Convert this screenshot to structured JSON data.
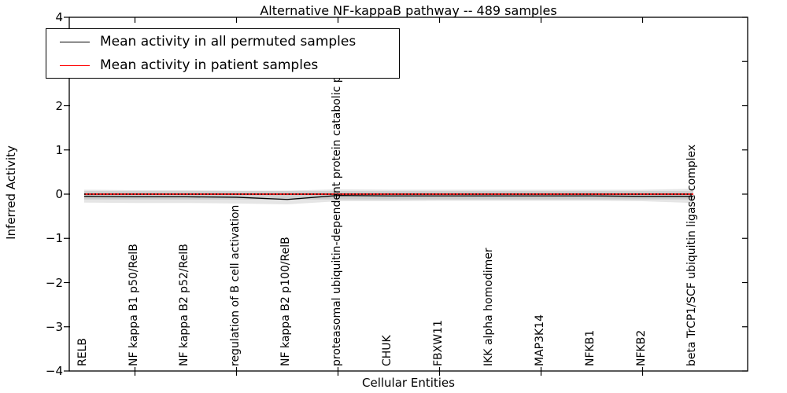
{
  "figure": {
    "background": "#ffffff"
  },
  "legend": {
    "entries": [
      {
        "label": "Mean activity in all permuted samples",
        "color": "#000000"
      },
      {
        "label": "Mean activity in patient samples",
        "color": "#ff0000"
      }
    ],
    "position": "upper left"
  },
  "chart_data": {
    "type": "line",
    "title": "Alternative NF-kappaB pathway -- 489 samples",
    "xlabel": "Cellular Entities",
    "ylabel": "Inferred Activity",
    "ylim": [
      -4,
      4
    ],
    "grid": false,
    "ytick_labels": [
      "4",
      "3",
      "2",
      "1",
      "0",
      "−1",
      "−2",
      "−3",
      "−4"
    ],
    "ytick_values": [
      4,
      3,
      2,
      1,
      0,
      -1,
      -2,
      -3,
      -4
    ],
    "xtick_mark_indices": [
      1,
      3,
      5,
      7,
      9,
      11
    ],
    "categories": [
      "RELB",
      "NF kappa B1 p50/RelB",
      "NF kappa B2 p52/RelB",
      "regulation of B cell activation",
      "NF kappa B2 p100/RelB",
      "proteasomal ubiquitin-dependent protein catabolic pro",
      "CHUK",
      "FBXW11",
      "IKK alpha homodimer",
      "MAP3K14",
      "NFKB1",
      "NFKB2",
      "beta TrCP1/SCF ubiquitin ligase complex"
    ],
    "series": [
      {
        "name": "Mean activity in all permuted samples",
        "color": "#000000",
        "style": "solid",
        "values": [
          -0.05,
          -0.06,
          -0.06,
          -0.07,
          -0.12,
          -0.03,
          -0.04,
          -0.04,
          -0.04,
          -0.04,
          -0.04,
          -0.05,
          -0.05
        ]
      },
      {
        "name": "Mean activity in patient samples",
        "color": "#ff0000",
        "style": "solid",
        "values": [
          0.0,
          0.0,
          0.0,
          0.0,
          0.0,
          0.0,
          0.0,
          0.0,
          0.0,
          0.0,
          0.0,
          0.0,
          0.0
        ]
      }
    ],
    "zero_reference_line": {
      "value": 0,
      "color": "#000000",
      "style": "dotted"
    },
    "uncertainty_bands": [
      {
        "name": "permuted-samples-band",
        "color": "rgba(0,0,0,0.10)",
        "upper": [
          0.1,
          0.09,
          0.09,
          0.08,
          0.08,
          0.11,
          0.1,
          0.1,
          0.1,
          0.1,
          0.1,
          0.1,
          0.12
        ],
        "lower": [
          -0.19,
          -0.2,
          -0.2,
          -0.21,
          -0.23,
          -0.16,
          -0.16,
          -0.15,
          -0.15,
          -0.15,
          -0.15,
          -0.16,
          -0.2
        ]
      },
      {
        "name": "patient-samples-band",
        "color": "rgba(0,0,0,0.10)",
        "upper": [
          0.07,
          0.07,
          0.07,
          0.07,
          0.07,
          0.07,
          0.07,
          0.07,
          0.07,
          0.07,
          0.07,
          0.07,
          0.07
        ],
        "lower": [
          -0.12,
          -0.12,
          -0.12,
          -0.12,
          -0.12,
          -0.12,
          -0.12,
          -0.12,
          -0.12,
          -0.12,
          -0.12,
          -0.12,
          -0.12
        ]
      }
    ],
    "legend_position": "upper left"
  }
}
